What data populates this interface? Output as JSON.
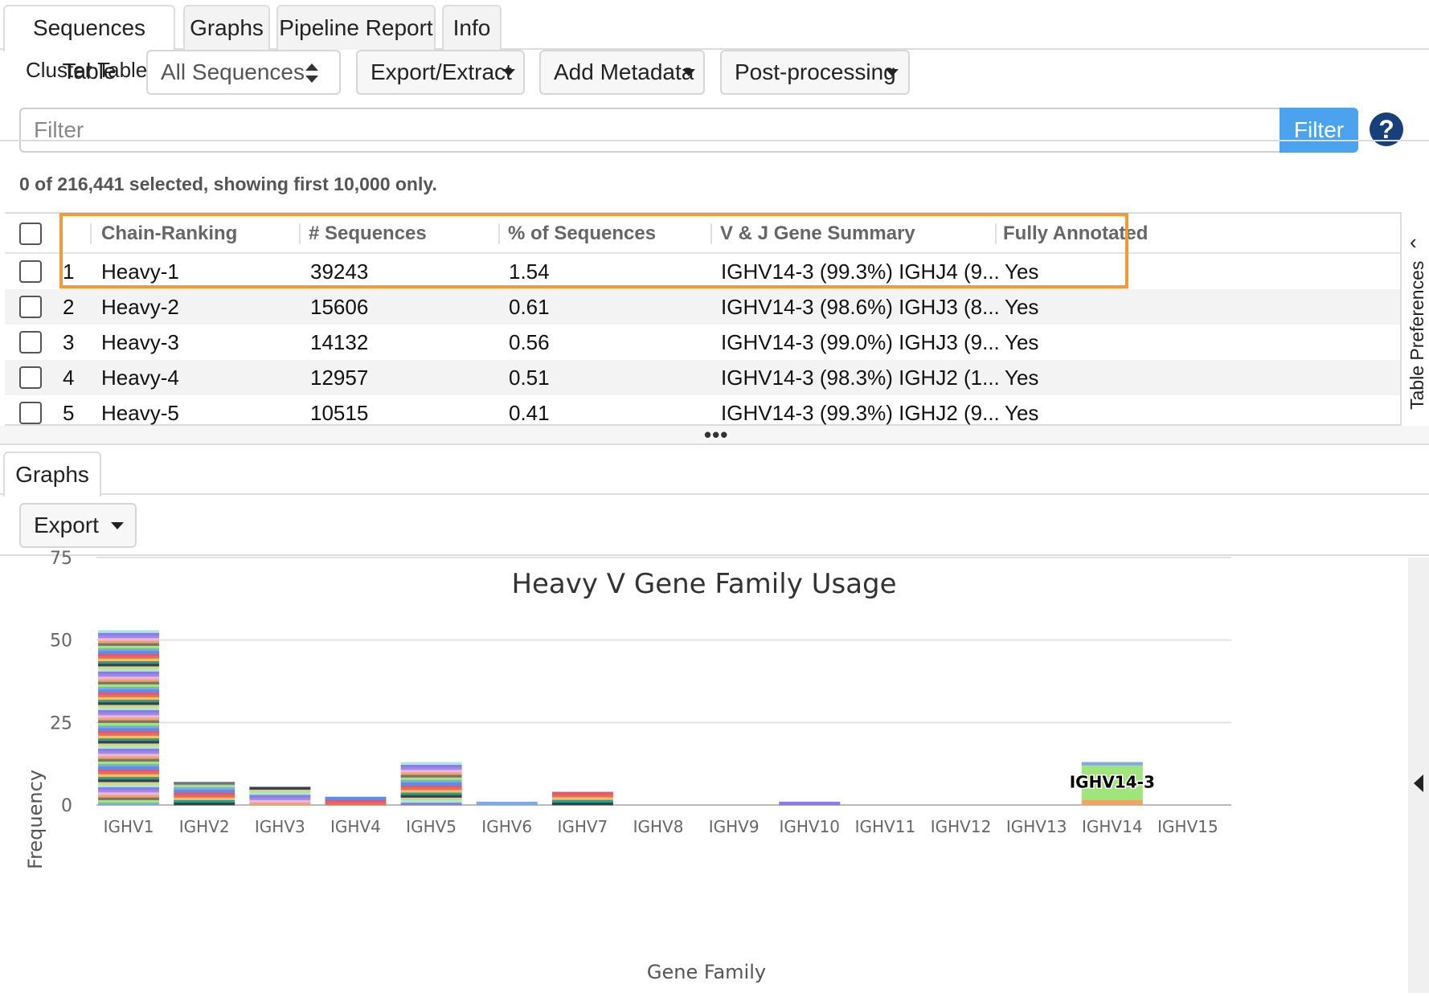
{
  "tabs": [
    {
      "label": "Sequences Table",
      "active": true
    },
    {
      "label": "Graphs",
      "active": false
    },
    {
      "label": "Pipeline Report",
      "active": false
    },
    {
      "label": "Info",
      "active": false
    }
  ],
  "toolbar": {
    "cluster_table_label": "Cluster Table:",
    "cluster_table_value": "All Sequences",
    "export_extract": "Export/Extract",
    "add_metadata": "Add Metadata",
    "post_processing": "Post-processing"
  },
  "filter": {
    "placeholder": "Filter",
    "value": "",
    "button": "Filter",
    "help": "?"
  },
  "selection_info": "0 of 216,441 selected, showing first 10,000 only.",
  "table": {
    "columns": [
      "Chain-Ranking",
      "# Sequences",
      "% of Sequences",
      "V & J Gene Summary",
      "Fully Annotated"
    ],
    "rows": [
      {
        "index": "1",
        "chain": "Heavy-1",
        "seqs": "39243",
        "pct": "1.54",
        "summary": "IGHV14-3 (99.3%) IGHJ4 (9...",
        "annotated": "Yes"
      },
      {
        "index": "2",
        "chain": "Heavy-2",
        "seqs": "15606",
        "pct": "0.61",
        "summary": "IGHV14-3 (98.6%) IGHJ3 (8...",
        "annotated": "Yes"
      },
      {
        "index": "3",
        "chain": "Heavy-3",
        "seqs": "14132",
        "pct": "0.56",
        "summary": "IGHV14-3 (99.0%) IGHJ3 (9...",
        "annotated": "Yes"
      },
      {
        "index": "4",
        "chain": "Heavy-4",
        "seqs": "12957",
        "pct": "0.51",
        "summary": "IGHV14-3 (98.3%) IGHJ2 (1...",
        "annotated": "Yes"
      },
      {
        "index": "5",
        "chain": "Heavy-5",
        "seqs": "10515",
        "pct": "0.41",
        "summary": "IGHV14-3 (99.3%) IGHJ2 (9...",
        "annotated": "Yes"
      }
    ]
  },
  "side_panel_label": "Table Preferences",
  "resizer_label": "•••",
  "graphs_tab": "Graphs",
  "export_button": "Export",
  "colors": {
    "accent": "#4aa3ec",
    "highlight": "#f09a38",
    "help": "#173f7a"
  },
  "chart_data": {
    "type": "bar",
    "stacked": true,
    "title": "Heavy V Gene Family Usage",
    "xlabel": "Gene Family",
    "ylabel": "Frequency",
    "ylim": [
      0,
      75
    ],
    "yticks": [
      0,
      25,
      50,
      75
    ],
    "grid": true,
    "categories": [
      "IGHV1",
      "IGHV2",
      "IGHV3",
      "IGHV4",
      "IGHV5",
      "IGHV6",
      "IGHV7",
      "IGHV8",
      "IGHV9",
      "IGHV10",
      "IGHV11",
      "IGHV12",
      "IGHV13",
      "IGHV14",
      "IGHV15"
    ],
    "values": [
      53,
      7,
      5.5,
      2.5,
      13,
      1,
      4,
      0,
      0,
      1,
      0,
      0,
      0,
      13,
      0
    ],
    "annotations": [
      {
        "category": "IGHV14",
        "text": "IGHV14-3"
      }
    ],
    "palette": [
      "#7fa8e8",
      "#e2596e",
      "#e9c46a",
      "#3a3f4b",
      "#a8e6e0",
      "#9b8ae8",
      "#f4a261",
      "#a0e57c",
      "#5b8def",
      "#e76f51",
      "#2a9d8f",
      "#d0d97a",
      "#8c7ae6",
      "#f2b5d4",
      "#6c757d"
    ]
  }
}
